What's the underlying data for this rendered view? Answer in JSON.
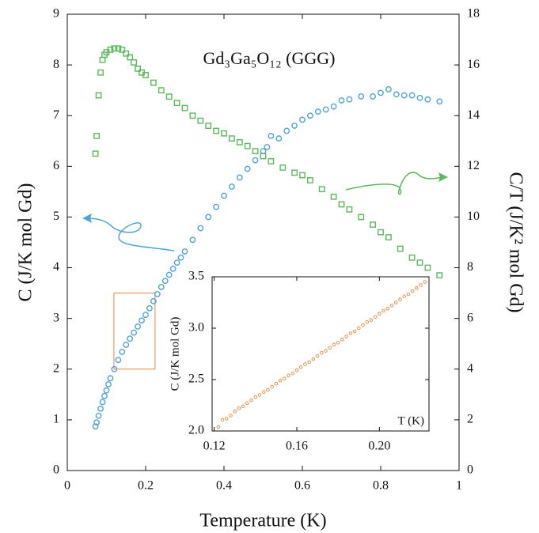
{
  "chart_data": [
    {
      "type": "scatter",
      "title": "Gd₃Ga₅O₁₂ (GGG)",
      "xlabel": "Temperature (K)",
      "ylabel": "C (J/K mol Gd)",
      "y2label": "C/T (J/K² mol Gd)",
      "xlim": [
        0,
        1
      ],
      "xticks": [
        0,
        0.2,
        0.4,
        0.6,
        0.8,
        1
      ],
      "ylim": [
        0,
        9
      ],
      "yticks": [
        0,
        1,
        2,
        3,
        4,
        5,
        6,
        7,
        8,
        9
      ],
      "y2lim": [
        0,
        18
      ],
      "y2ticks": [
        0,
        2,
        4,
        6,
        8,
        10,
        12,
        14,
        16,
        18
      ],
      "series": [
        {
          "color": "#4ea4d8",
          "marker": "circle",
          "axis": "y",
          "x": [
            0.072,
            0.075,
            0.08,
            0.085,
            0.09,
            0.095,
            0.1,
            0.105,
            0.11,
            0.12,
            0.13,
            0.14,
            0.15,
            0.16,
            0.17,
            0.18,
            0.19,
            0.2,
            0.21,
            0.22,
            0.23,
            0.24,
            0.25,
            0.26,
            0.27,
            0.28,
            0.29,
            0.3,
            0.32,
            0.34,
            0.36,
            0.38,
            0.4,
            0.42,
            0.44,
            0.46,
            0.48,
            0.5,
            0.51,
            0.52,
            0.54,
            0.56,
            0.58,
            0.6,
            0.62,
            0.64,
            0.66,
            0.68,
            0.7,
            0.72,
            0.75,
            0.78,
            0.8,
            0.82,
            0.84,
            0.86,
            0.88,
            0.9,
            0.92,
            0.95
          ],
          "values": [
            0.87,
            0.95,
            1.08,
            1.22,
            1.35,
            1.47,
            1.58,
            1.7,
            1.82,
            2.0,
            2.18,
            2.34,
            2.48,
            2.6,
            2.72,
            2.84,
            2.96,
            3.07,
            3.2,
            3.34,
            3.48,
            3.62,
            3.74,
            3.86,
            3.98,
            4.1,
            4.2,
            4.32,
            4.55,
            4.78,
            5.0,
            5.2,
            5.42,
            5.6,
            5.78,
            5.95,
            6.12,
            6.3,
            6.38,
            6.6,
            6.55,
            6.7,
            6.8,
            6.92,
            7.0,
            7.08,
            7.12,
            7.18,
            7.3,
            7.32,
            7.38,
            7.38,
            7.45,
            7.52,
            7.42,
            7.4,
            7.4,
            7.35,
            7.32,
            7.28
          ]
        },
        {
          "color": "#5cb85c",
          "marker": "square",
          "axis": "y2",
          "x": [
            0.072,
            0.075,
            0.08,
            0.085,
            0.09,
            0.095,
            0.1,
            0.11,
            0.12,
            0.13,
            0.14,
            0.15,
            0.16,
            0.17,
            0.18,
            0.19,
            0.2,
            0.22,
            0.24,
            0.26,
            0.28,
            0.3,
            0.32,
            0.34,
            0.36,
            0.38,
            0.4,
            0.42,
            0.44,
            0.46,
            0.48,
            0.5,
            0.52,
            0.55,
            0.58,
            0.6,
            0.62,
            0.65,
            0.68,
            0.7,
            0.72,
            0.75,
            0.78,
            0.8,
            0.82,
            0.85,
            0.88,
            0.9,
            0.92,
            0.95
          ],
          "values": [
            12.5,
            13.2,
            14.8,
            15.7,
            16.2,
            16.4,
            16.5,
            16.6,
            16.65,
            16.65,
            16.6,
            16.45,
            16.3,
            16.1,
            15.85,
            15.7,
            15.6,
            15.3,
            15.0,
            14.75,
            14.5,
            14.3,
            14.0,
            13.8,
            13.6,
            13.4,
            13.3,
            13.1,
            12.95,
            12.8,
            12.6,
            12.4,
            12.2,
            11.95,
            11.75,
            11.65,
            11.45,
            11.1,
            10.8,
            10.5,
            10.3,
            10.0,
            9.7,
            9.4,
            9.2,
            8.75,
            8.4,
            8.2,
            8.0,
            7.7
          ]
        }
      ]
    },
    {
      "type": "scatter",
      "xlabel": "T (K)",
      "ylabel": "C (J/K mol Gd)",
      "xlim": [
        0.119,
        0.224
      ],
      "xticks": [
        0.12,
        0.16,
        {
          "value": 0.2,
          "label": "0.20"
        }
      ],
      "ylim": [
        2.0,
        3.5
      ],
      "yticks": [
        {
          "value": 2.0,
          "label": "2.0"
        },
        2.5,
        {
          "value": 3.0,
          "label": "3.0"
        },
        3.5
      ],
      "series": [
        {
          "color": "#e08a3c",
          "marker": "circle",
          "axis": "y",
          "x": [
            0.122,
            0.124,
            0.126,
            0.128,
            0.13,
            0.132,
            0.134,
            0.136,
            0.138,
            0.14,
            0.142,
            0.144,
            0.146,
            0.148,
            0.15,
            0.152,
            0.154,
            0.156,
            0.158,
            0.16,
            0.162,
            0.164,
            0.166,
            0.168,
            0.17,
            0.172,
            0.174,
            0.176,
            0.178,
            0.18,
            0.182,
            0.184,
            0.186,
            0.188,
            0.19,
            0.192,
            0.194,
            0.196,
            0.198,
            0.2,
            0.202,
            0.204,
            0.206,
            0.208,
            0.21,
            0.212,
            0.214,
            0.216,
            0.218,
            0.22,
            0.222
          ],
          "values": [
            2.04,
            2.11,
            2.12,
            2.15,
            2.19,
            2.22,
            2.24,
            2.27,
            2.3,
            2.33,
            2.35,
            2.38,
            2.4,
            2.43,
            2.46,
            2.49,
            2.51,
            2.54,
            2.56,
            2.59,
            2.62,
            2.65,
            2.67,
            2.7,
            2.73,
            2.76,
            2.78,
            2.81,
            2.84,
            2.86,
            2.89,
            2.92,
            2.95,
            2.97,
            3.0,
            3.03,
            3.06,
            3.08,
            3.11,
            3.14,
            3.17,
            3.19,
            3.22,
            3.25,
            3.28,
            3.31,
            3.33,
            3.36,
            3.39,
            3.42,
            3.45
          ]
        }
      ]
    }
  ]
}
